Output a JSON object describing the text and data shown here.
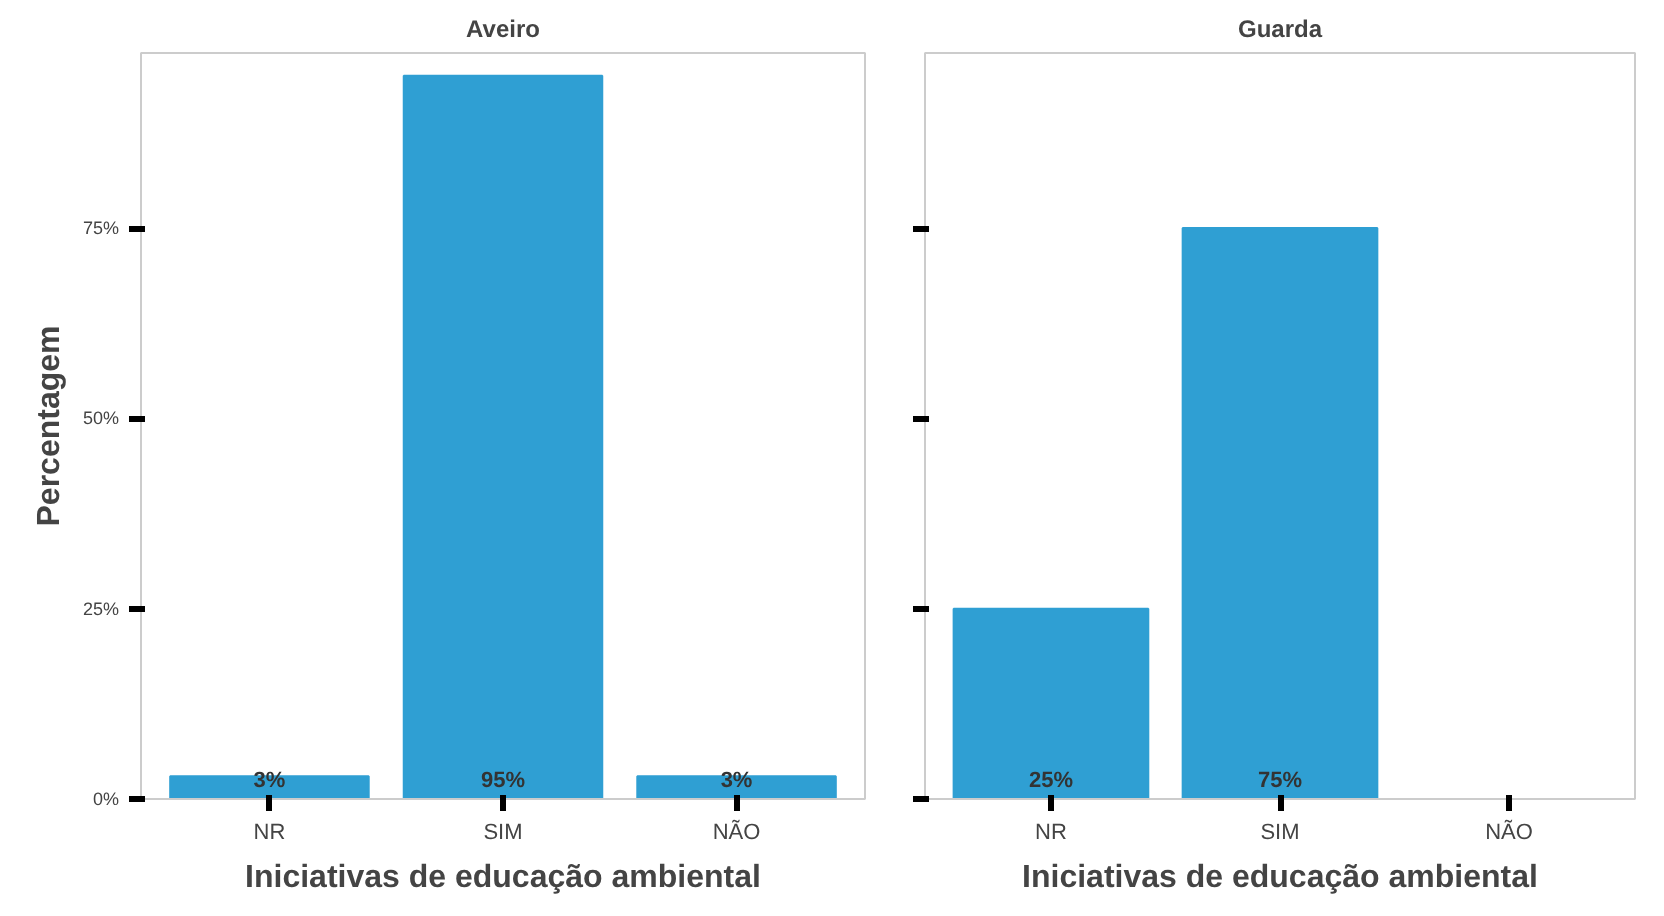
{
  "chart_data": [
    {
      "type": "bar",
      "title": "Aveiro",
      "xlabel": "Iniciativas de educação ambiental",
      "ylabel": "Percentagem",
      "categories": [
        "NR",
        "SIM",
        "NÃO"
      ],
      "values": [
        3,
        95,
        3
      ],
      "color": "#2f9fd3",
      "value_labels": [
        "3%",
        "95%",
        "3%"
      ],
      "ylim": [
        0,
        98
      ],
      "yticks": [
        {
          "value": 0,
          "label": "0%"
        },
        {
          "value": 25,
          "label": "25%"
        },
        {
          "value": 50,
          "label": "50%"
        },
        {
          "value": 75,
          "label": "75%"
        }
      ],
      "grid": false
    },
    {
      "type": "bar",
      "title": "Guarda",
      "xlabel": "Iniciativas de educação ambiental",
      "categories": [
        "NR",
        "SIM",
        "NÃO"
      ],
      "values": [
        25,
        75,
        0
      ],
      "color": "#2f9fd3",
      "value_labels": [
        "25%",
        "75%",
        null
      ],
      "ylim": [
        0,
        98
      ],
      "yticks": [
        0,
        25,
        50,
        75
      ],
      "tick_labels": "x",
      "grid": false
    }
  ]
}
